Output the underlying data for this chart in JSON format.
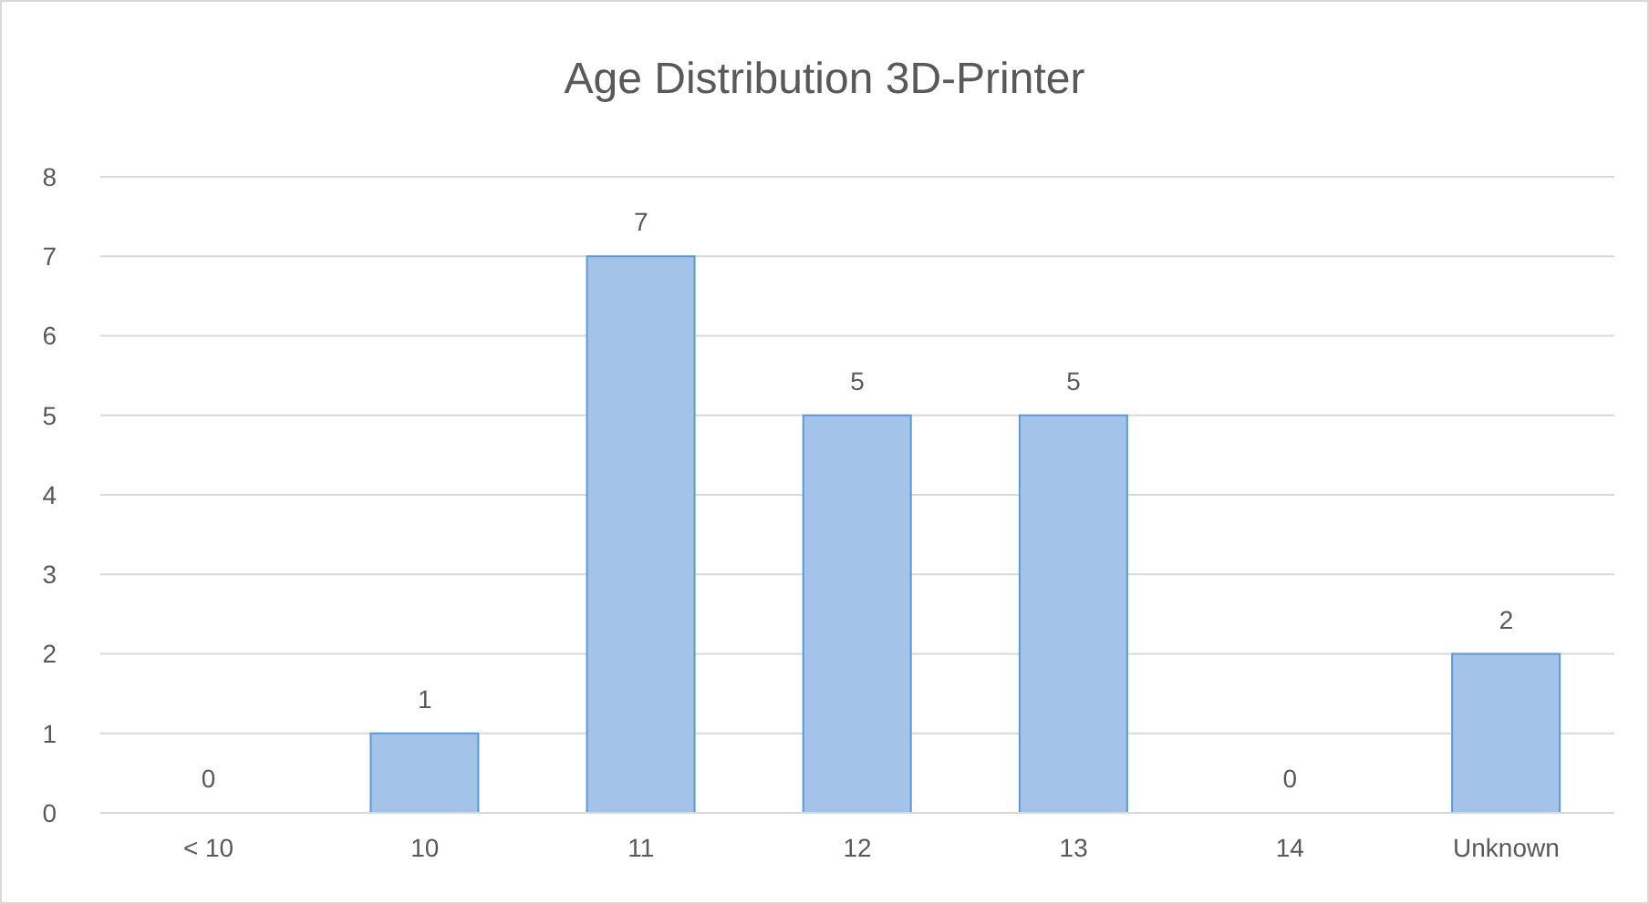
{
  "chart_data": {
    "type": "bar",
    "title": "Age Distribution 3D-Printer",
    "categories": [
      "< 10",
      "10",
      "11",
      "12",
      "13",
      "14",
      "Unknown"
    ],
    "values": [
      0,
      1,
      7,
      5,
      5,
      0,
      2
    ],
    "color": "#a3c3e8",
    "ylim": [
      0,
      8
    ],
    "yticks": [
      0,
      1,
      2,
      3,
      4,
      5,
      6,
      7,
      8
    ],
    "grid": "y",
    "data_labels": true
  }
}
